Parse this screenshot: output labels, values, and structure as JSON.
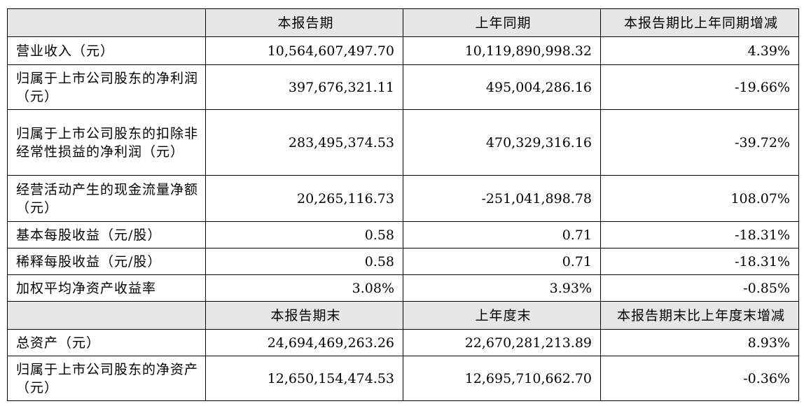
{
  "table": {
    "sections": [
      {
        "columns": [
          "本报告期",
          "上年同期",
          "本报告期比上年同期增减"
        ],
        "rows": [
          [
            "营业收入（元）",
            "10,564,607,497.70",
            "10,119,890,998.32",
            "4.39%"
          ],
          [
            "归属于上市公司股东的净利润（元）",
            "397,676,321.11",
            "495,004,286.16",
            "-19.66%"
          ],
          [
            "归属于上市公司股东的扣除非经常性损益的净利润（元）",
            "283,495,374.53",
            "470,329,316.16",
            "-39.72%"
          ],
          [
            "经营活动产生的现金流量净额（元）",
            "20,265,116.73",
            "-251,041,898.78",
            "108.07%"
          ],
          [
            "基本每股收益（元/股）",
            "0.58",
            "0.71",
            "-18.31%"
          ],
          [
            "稀释每股收益（元/股）",
            "0.58",
            "0.71",
            "-18.31%"
          ],
          [
            "加权平均净资产收益率",
            "3.08%",
            "3.93%",
            "-0.85%"
          ]
        ]
      },
      {
        "columns": [
          "本报告期末",
          "上年度末",
          "本报告期末比上年度末增减"
        ],
        "rows": [
          [
            "总资产（元）",
            "24,694,469,263.26",
            "22,670,281,213.89",
            "8.93%"
          ],
          [
            "归属于上市公司股东的净资产（元）",
            "12,650,154,474.53",
            "12,695,710,662.70",
            "-0.36%"
          ]
        ]
      }
    ]
  }
}
